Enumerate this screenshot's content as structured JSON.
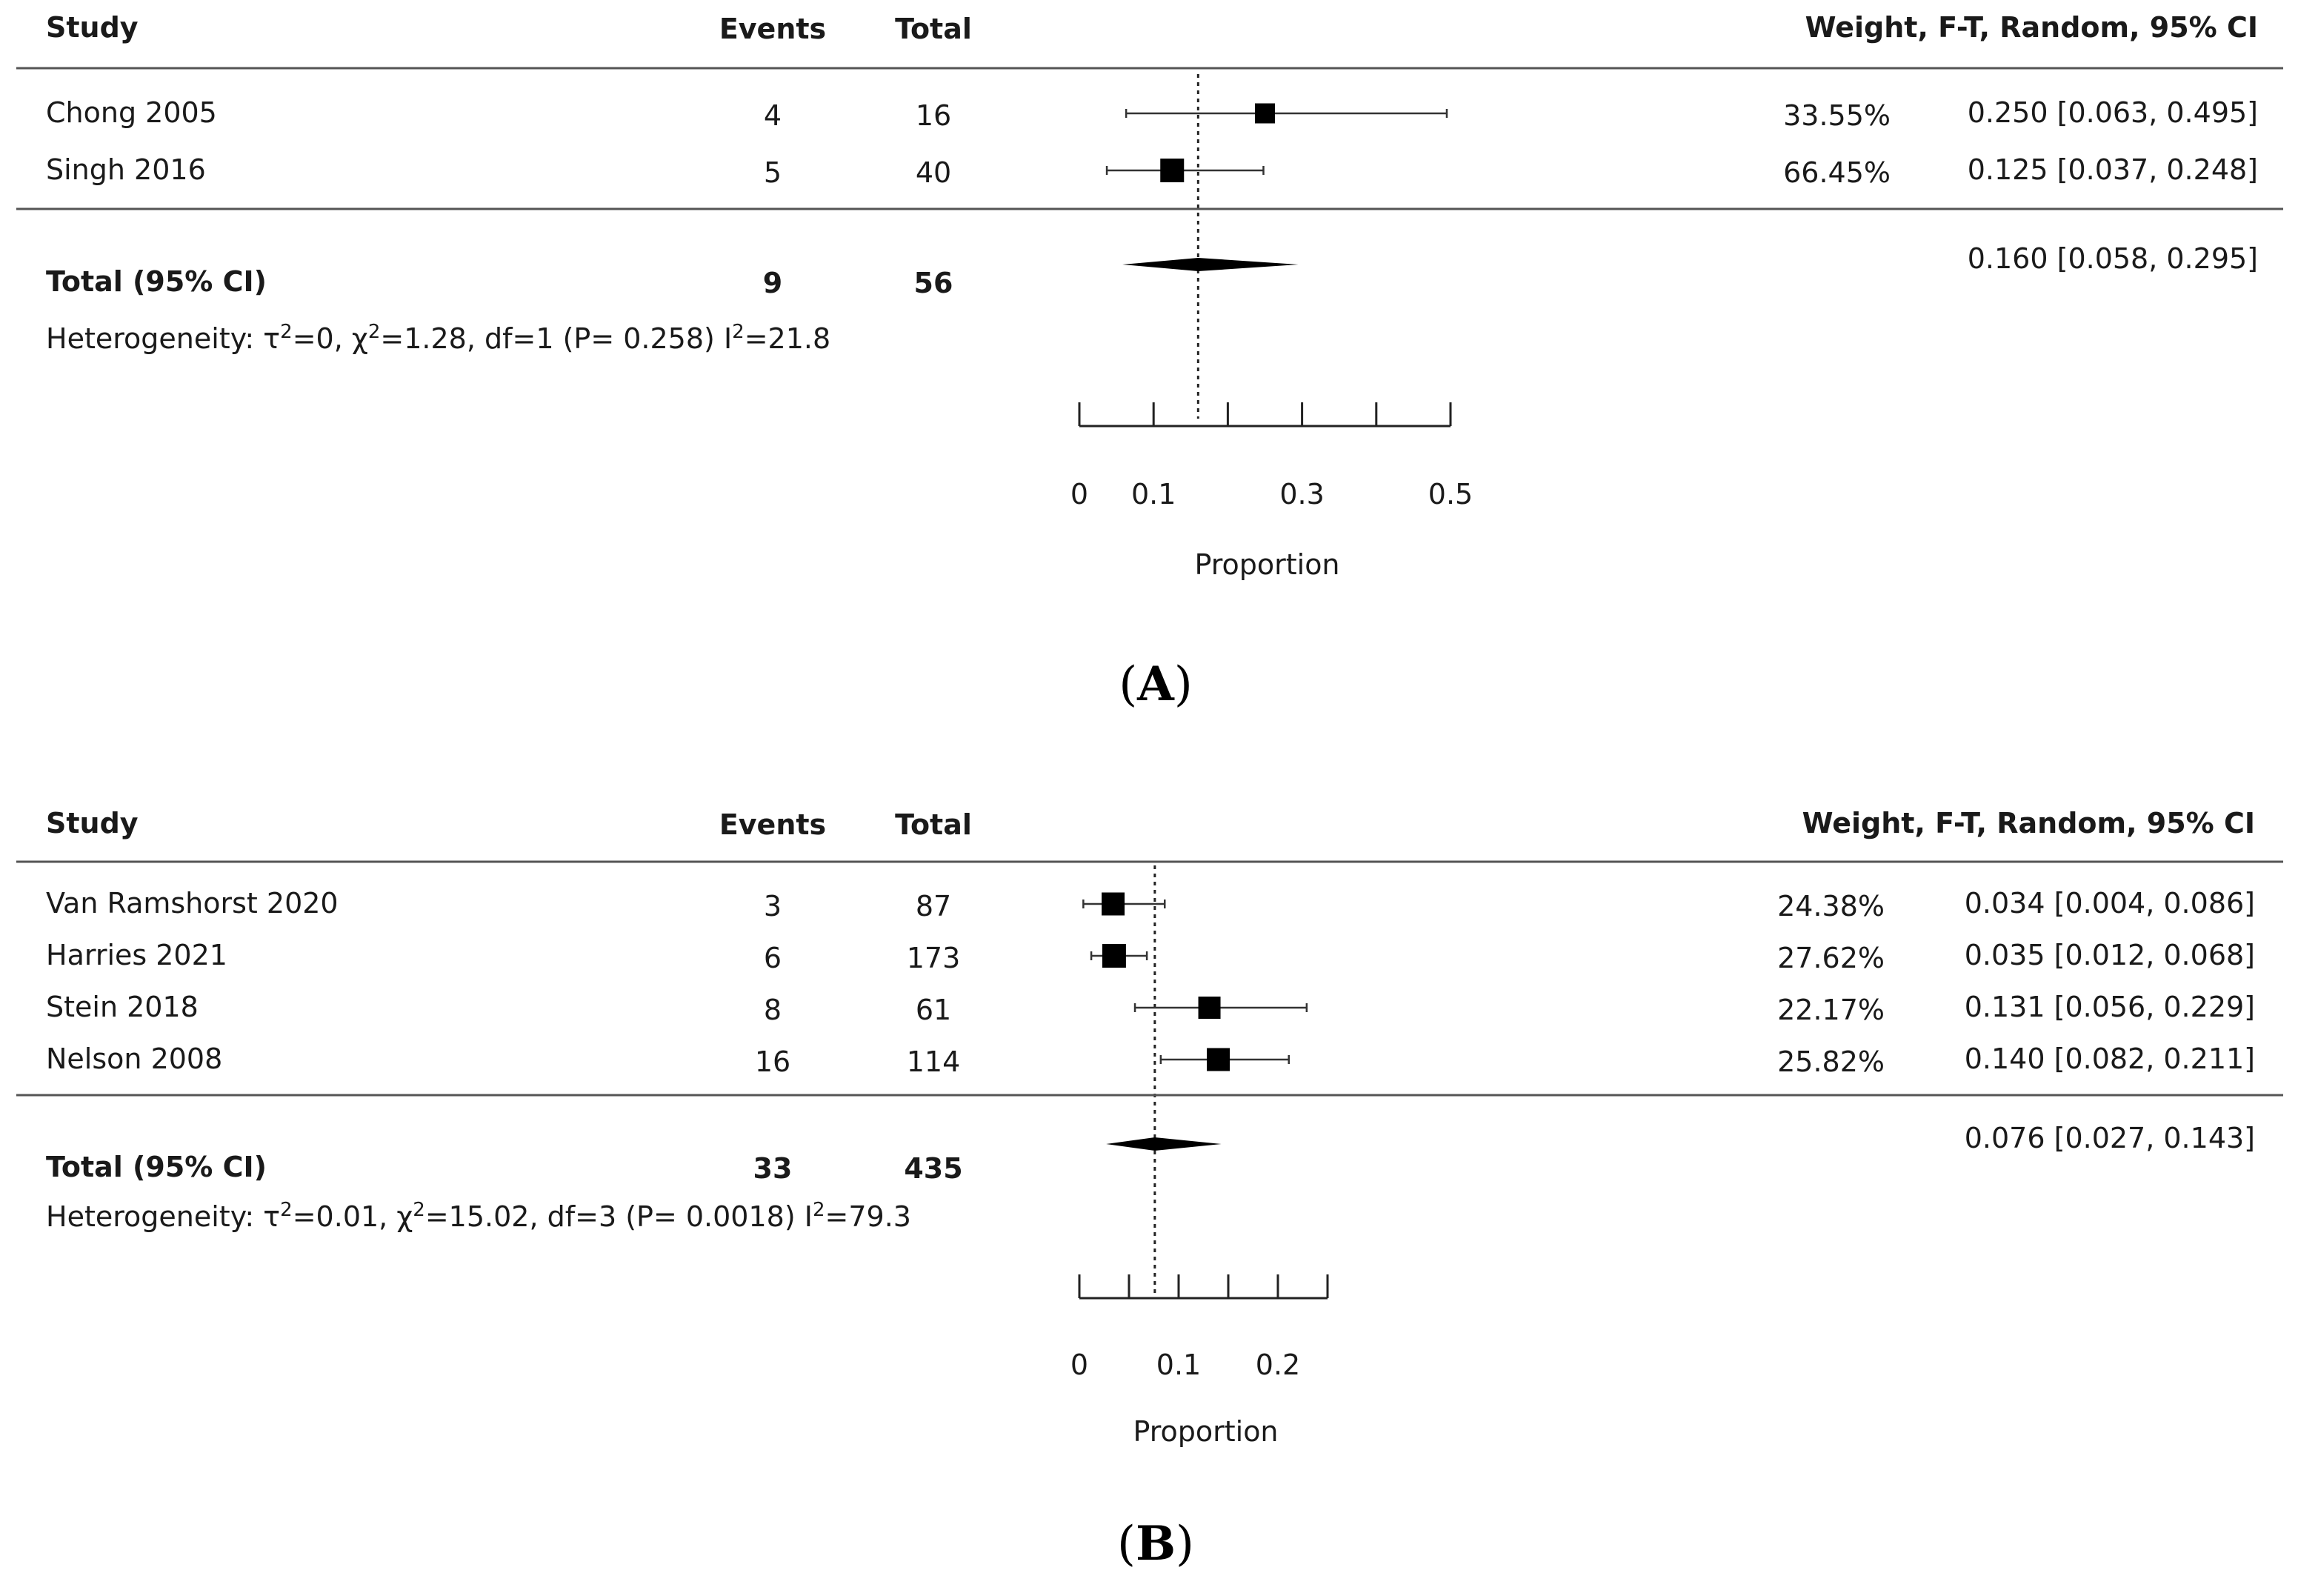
{
  "chart_data": [
    {
      "type": "forest",
      "panel_label": "A",
      "headers": {
        "study": "Study",
        "events": "Events",
        "total": "Total",
        "weight_ci": "Weight, F-T, Random, 95% CI"
      },
      "studies": [
        {
          "name": "Chong 2005",
          "events": "4",
          "total": "16",
          "weight": "33.55%",
          "ci_text": "0.250 [0.063, 0.495]",
          "est": 0.25,
          "lo": 0.063,
          "hi": 0.495
        },
        {
          "name": "Singh 2016",
          "events": "5",
          "total": "40",
          "weight": "66.45%",
          "ci_text": "0.125 [0.037, 0.248]",
          "est": 0.125,
          "lo": 0.037,
          "hi": 0.248
        }
      ],
      "pooled": {
        "label": "Total (95% CI)",
        "events": "9",
        "total": "56",
        "ci_text": "0.160 [0.058, 0.295]",
        "est": 0.16,
        "lo": 0.058,
        "hi": 0.295
      },
      "heterogeneity": {
        "prefix": "Heterogeneity: τ",
        "tau2": "=0, χ",
        "chi2": "=1.28, df=1 (P= 0.258) I",
        "i2": "=21.8"
      },
      "xlabel": "Proportion",
      "xlim": [
        0,
        0.5
      ],
      "tick_values": [
        0,
        0.1,
        0.2,
        0.3,
        0.4,
        0.5
      ],
      "tick_labels": [
        {
          "value": 0,
          "label": "0"
        },
        {
          "value": 0.1,
          "label": "0.1"
        },
        {
          "value": 0.3,
          "label": "0.3"
        },
        {
          "value": 0.5,
          "label": "0.5"
        }
      ]
    },
    {
      "type": "forest",
      "panel_label": "B",
      "headers": {
        "study": "Study",
        "events": "Events",
        "total": "Total",
        "weight_ci": "Weight, F-T, Random, 95% CI"
      },
      "studies": [
        {
          "name": "Van Ramshorst 2020",
          "events": "3",
          "total": "87",
          "weight": "24.38%",
          "ci_text": "0.034 [0.004, 0.086]",
          "est": 0.034,
          "lo": 0.004,
          "hi": 0.086
        },
        {
          "name": "Harries 2021",
          "events": "6",
          "total": "173",
          "weight": "27.62%",
          "ci_text": "0.035 [0.012, 0.068]",
          "est": 0.035,
          "lo": 0.012,
          "hi": 0.068
        },
        {
          "name": "Stein 2018",
          "events": "8",
          "total": "61",
          "weight": "22.17%",
          "ci_text": "0.131 [0.056, 0.229]",
          "est": 0.131,
          "lo": 0.056,
          "hi": 0.229
        },
        {
          "name": "Nelson 2008",
          "events": "16",
          "total": "114",
          "weight": "25.82%",
          "ci_text": "0.140 [0.082, 0.211]",
          "est": 0.14,
          "lo": 0.082,
          "hi": 0.211
        }
      ],
      "pooled": {
        "label": "Total (95% CI)",
        "events": "33",
        "total": "435",
        "ci_text": "0.076 [0.027, 0.143]",
        "est": 0.076,
        "lo": 0.027,
        "hi": 0.143
      },
      "heterogeneity": {
        "prefix": "Heterogeneity: τ",
        "tau2": "=0.01, χ",
        "chi2": "=15.02, df=3 (P= 0.0018) I",
        "i2": "=79.3"
      },
      "xlabel": "Proportion",
      "xlim": [
        0,
        0.25
      ],
      "tick_values": [
        0,
        0.05,
        0.1,
        0.15,
        0.2,
        0.25
      ],
      "tick_labels": [
        {
          "value": 0,
          "label": "0"
        },
        {
          "value": 0.1,
          "label": "0.1"
        },
        {
          "value": 0.2,
          "label": "0.2"
        }
      ]
    }
  ]
}
